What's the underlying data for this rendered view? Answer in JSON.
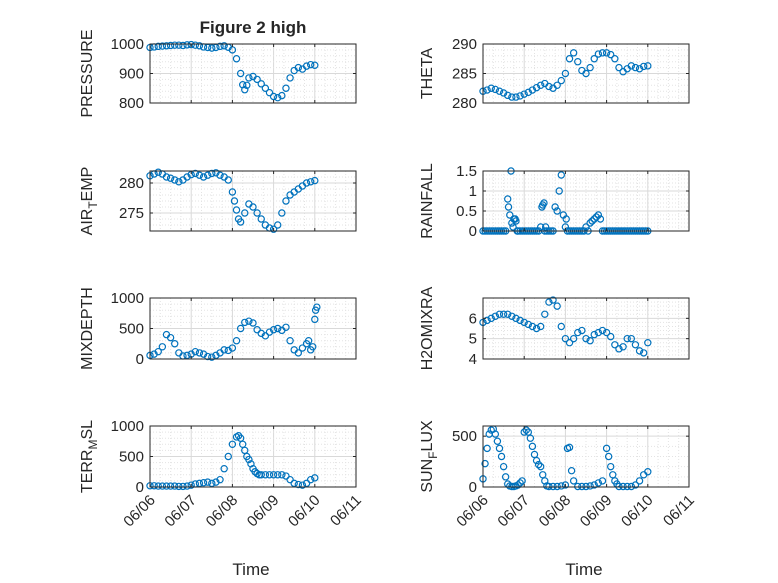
{
  "chart_data": [
    {
      "type": "scatter",
      "title": "Figure 2 high",
      "ylabel": "PRESSURE",
      "ylim": [
        800,
        1000
      ],
      "yticks": [
        "800",
        "900",
        "1000"
      ],
      "grid": true,
      "marker": "circle",
      "color": "#0072BD",
      "series": [
        {
          "x": [
            6.0,
            6.1,
            6.2,
            6.3,
            6.4,
            6.5,
            6.6,
            6.7,
            6.8,
            6.9,
            7.0,
            7.1,
            7.2,
            7.3,
            7.4,
            7.5,
            7.6,
            7.7,
            7.8,
            7.9,
            8.0,
            8.1,
            8.2,
            8.25,
            8.3,
            8.35,
            8.4,
            8.5,
            8.6,
            8.7,
            8.8,
            8.9,
            9.0,
            9.1,
            9.2,
            9.3,
            9.4,
            9.5,
            9.6,
            9.7,
            9.8,
            9.9,
            10.0
          ],
          "y": [
            988,
            990,
            992,
            993,
            994,
            995,
            996,
            996,
            995,
            997,
            998,
            996,
            994,
            990,
            988,
            986,
            988,
            992,
            994,
            989,
            980,
            950,
            900,
            862,
            845,
            860,
            885,
            890,
            880,
            865,
            850,
            835,
            822,
            818,
            825,
            850,
            885,
            910,
            920,
            915,
            925,
            930,
            928
          ]
        }
      ]
    },
    {
      "type": "scatter",
      "ylabel": "THETA",
      "ylim": [
        280,
        290
      ],
      "yticks": [
        "280",
        "285",
        "290"
      ],
      "grid": true,
      "marker": "circle",
      "color": "#0072BD",
      "series": [
        {
          "x": [
            6.0,
            6.1,
            6.2,
            6.3,
            6.4,
            6.5,
            6.6,
            6.7,
            6.8,
            6.9,
            7.0,
            7.1,
            7.2,
            7.3,
            7.4,
            7.5,
            7.6,
            7.7,
            7.8,
            7.9,
            8.0,
            8.1,
            8.2,
            8.3,
            8.4,
            8.5,
            8.6,
            8.7,
            8.8,
            8.9,
            9.0,
            9.1,
            9.2,
            9.3,
            9.4,
            9.5,
            9.6,
            9.7,
            9.8,
            9.9,
            10.0
          ],
          "y": [
            282.0,
            282.2,
            282.5,
            282.3,
            282.0,
            281.7,
            281.3,
            281.0,
            281.0,
            281.2,
            281.5,
            281.8,
            282.2,
            282.6,
            283.0,
            283.3,
            282.8,
            282.5,
            283.0,
            283.8,
            285.0,
            287.5,
            288.5,
            287.0,
            285.5,
            285.0,
            286.0,
            287.5,
            288.3,
            288.5,
            288.5,
            288.2,
            287.5,
            286.0,
            285.3,
            285.8,
            286.3,
            286.0,
            285.8,
            286.2,
            286.3
          ]
        }
      ]
    },
    {
      "type": "scatter",
      "ylabel": "AIR_TEMP",
      "ylabel_parts": [
        "AIR",
        "T",
        "EMP"
      ],
      "ylim": [
        272,
        282
      ],
      "yticks": [
        "275",
        "280"
      ],
      "grid": true,
      "marker": "circle",
      "color": "#0072BD",
      "series": [
        {
          "x": [
            6.0,
            6.1,
            6.2,
            6.3,
            6.4,
            6.5,
            6.6,
            6.7,
            6.8,
            6.9,
            7.0,
            7.1,
            7.2,
            7.3,
            7.4,
            7.5,
            7.6,
            7.7,
            7.8,
            7.9,
            8.0,
            8.05,
            8.1,
            8.15,
            8.2,
            8.3,
            8.4,
            8.5,
            8.6,
            8.7,
            8.8,
            8.9,
            9.0,
            9.1,
            9.2,
            9.3,
            9.4,
            9.5,
            9.6,
            9.7,
            9.8,
            9.9,
            10.0
          ],
          "y": [
            281.2,
            281.5,
            281.8,
            281.5,
            281.0,
            280.8,
            280.5,
            280.2,
            280.5,
            281.0,
            281.4,
            281.6,
            281.3,
            281.0,
            281.3,
            281.6,
            281.7,
            281.3,
            281.0,
            280.5,
            278.5,
            277.0,
            275.5,
            274.0,
            273.5,
            275.0,
            276.5,
            276.0,
            275.0,
            274.0,
            273.0,
            272.5,
            272.3,
            273.0,
            275.0,
            277.0,
            278.0,
            278.5,
            279.0,
            279.5,
            280.0,
            280.2,
            280.4
          ]
        }
      ]
    },
    {
      "type": "scatter",
      "ylabel": "RAINFALL",
      "ylim": [
        0,
        1.5
      ],
      "yticks": [
        "0",
        "0.5",
        "1",
        "1.5"
      ],
      "grid": true,
      "marker": "circle",
      "color": "#0072BD",
      "series": [
        {
          "x": [
            6.0,
            6.05,
            6.1,
            6.15,
            6.2,
            6.25,
            6.3,
            6.35,
            6.4,
            6.45,
            6.5,
            6.55,
            6.6,
            6.62,
            6.65,
            6.68,
            6.7,
            6.73,
            6.75,
            6.78,
            6.8,
            6.83,
            6.85,
            6.9,
            6.95,
            7.0,
            7.05,
            7.1,
            7.15,
            7.2,
            7.25,
            7.3,
            7.35,
            7.4,
            7.43,
            7.45,
            7.48,
            7.5,
            7.52,
            7.55,
            7.6,
            7.65,
            7.7,
            7.75,
            7.8,
            7.85,
            7.9,
            7.95,
            8.0,
            8.02,
            8.05,
            8.1,
            8.15,
            8.2,
            8.25,
            8.3,
            8.35,
            8.4,
            8.45,
            8.5,
            8.55,
            8.6,
            8.65,
            8.7,
            8.75,
            8.8,
            8.85,
            8.9,
            8.95,
            9.0,
            9.05,
            9.1,
            9.15,
            9.2,
            9.25,
            9.3,
            9.35,
            9.4,
            9.45,
            9.5,
            9.55,
            9.6,
            9.65,
            9.7,
            9.75,
            9.8,
            9.85,
            9.9,
            9.95,
            10.0
          ],
          "y": [
            0,
            0,
            0,
            0,
            0,
            0,
            0,
            0,
            0,
            0,
            0,
            0,
            0.8,
            0.6,
            0.4,
            1.5,
            0.2,
            0.1,
            0.3,
            0.3,
            0.25,
            0,
            0,
            0,
            0,
            0,
            0,
            0,
            0,
            0,
            0,
            0,
            0,
            0.1,
            0.6,
            0.65,
            0.7,
            0,
            0.1,
            0,
            0,
            0,
            0,
            0.6,
            0.5,
            1.0,
            1.4,
            0.4,
            0.1,
            0.3,
            0,
            0,
            0,
            0,
            0,
            0,
            0,
            0,
            0,
            0.1,
            0,
            0.2,
            0.25,
            0.3,
            0.35,
            0.4,
            0.3,
            0,
            0,
            0,
            0,
            0,
            0,
            0,
            0,
            0,
            0,
            0,
            0,
            0,
            0,
            0,
            0,
            0,
            0,
            0,
            0,
            0,
            0,
            0
          ]
        }
      ]
    },
    {
      "type": "scatter",
      "ylabel": "MIXDEPTH",
      "ylim": [
        0,
        1000
      ],
      "yticks": [
        "0",
        "500",
        "1000"
      ],
      "grid": true,
      "marker": "circle",
      "color": "#0072BD",
      "series": [
        {
          "x": [
            6.0,
            6.1,
            6.2,
            6.3,
            6.4,
            6.5,
            6.6,
            6.7,
            6.8,
            6.9,
            7.0,
            7.1,
            7.2,
            7.3,
            7.4,
            7.5,
            7.6,
            7.7,
            7.8,
            7.9,
            8.0,
            8.1,
            8.2,
            8.3,
            8.4,
            8.5,
            8.6,
            8.7,
            8.8,
            8.9,
            9.0,
            9.1,
            9.2,
            9.3,
            9.4,
            9.5,
            9.6,
            9.7,
            9.8,
            9.85,
            9.9,
            9.95,
            10.0,
            10.02,
            10.05
          ],
          "y": [
            60,
            80,
            120,
            200,
            400,
            350,
            250,
            100,
            50,
            60,
            80,
            120,
            100,
            80,
            40,
            30,
            60,
            100,
            150,
            140,
            180,
            300,
            500,
            600,
            620,
            590,
            480,
            420,
            380,
            440,
            480,
            500,
            470,
            520,
            300,
            150,
            100,
            180,
            250,
            300,
            150,
            200,
            650,
            800,
            850
          ]
        }
      ]
    },
    {
      "type": "scatter",
      "ylabel": "H2OMIXRA",
      "ylim": [
        4,
        7
      ],
      "yticks": [
        "4",
        "5",
        "6"
      ],
      "grid": true,
      "marker": "circle",
      "color": "#0072BD",
      "series": [
        {
          "x": [
            6.0,
            6.1,
            6.2,
            6.3,
            6.4,
            6.5,
            6.6,
            6.7,
            6.8,
            6.9,
            7.0,
            7.1,
            7.2,
            7.3,
            7.4,
            7.5,
            7.6,
            7.7,
            7.8,
            7.9,
            8.0,
            8.1,
            8.2,
            8.3,
            8.4,
            8.5,
            8.6,
            8.7,
            8.8,
            8.9,
            9.0,
            9.1,
            9.2,
            9.3,
            9.4,
            9.5,
            9.6,
            9.7,
            9.8,
            9.9,
            10.0
          ],
          "y": [
            5.8,
            5.9,
            6.0,
            6.1,
            6.2,
            6.2,
            6.2,
            6.1,
            6.0,
            5.9,
            5.8,
            5.7,
            5.6,
            5.5,
            5.6,
            6.2,
            6.8,
            6.9,
            6.6,
            5.6,
            5.0,
            4.8,
            5.0,
            5.3,
            5.4,
            5.0,
            4.9,
            5.2,
            5.3,
            5.4,
            5.3,
            5.1,
            4.7,
            4.5,
            4.6,
            5.0,
            5.0,
            4.7,
            4.4,
            4.3,
            4.8
          ]
        }
      ]
    },
    {
      "type": "scatter",
      "ylabel": "TERR_MSL",
      "ylabel_parts": [
        "TERR",
        "M",
        "SL"
      ],
      "ylim": [
        0,
        1000
      ],
      "yticks": [
        "0",
        "500",
        "1000"
      ],
      "xticks": [
        "06/06",
        "06/07",
        "06/08",
        "06/09",
        "06/10",
        "06/11"
      ],
      "xlabel": "Time",
      "grid": true,
      "marker": "circle",
      "color": "#0072BD",
      "series": [
        {
          "x": [
            6.0,
            6.1,
            6.2,
            6.3,
            6.4,
            6.5,
            6.6,
            6.7,
            6.8,
            6.9,
            7.0,
            7.1,
            7.2,
            7.3,
            7.4,
            7.5,
            7.6,
            7.7,
            7.8,
            7.9,
            8.0,
            8.1,
            8.15,
            8.2,
            8.25,
            8.3,
            8.35,
            8.4,
            8.45,
            8.5,
            8.55,
            8.6,
            8.65,
            8.7,
            8.8,
            8.9,
            9.0,
            9.1,
            9.2,
            9.3,
            9.4,
            9.5,
            9.6,
            9.7,
            9.8,
            9.9,
            10.0
          ],
          "y": [
            20,
            20,
            15,
            15,
            15,
            15,
            15,
            10,
            10,
            15,
            30,
            50,
            60,
            70,
            80,
            60,
            80,
            120,
            300,
            500,
            700,
            820,
            840,
            800,
            700,
            600,
            500,
            450,
            380,
            300,
            250,
            220,
            200,
            200,
            200,
            200,
            200,
            200,
            200,
            180,
            120,
            60,
            40,
            30,
            60,
            120,
            150
          ]
        }
      ]
    },
    {
      "type": "scatter",
      "ylabel": "SUN_FLUX",
      "ylabel_parts": [
        "SUN",
        "F",
        "LUX"
      ],
      "ylim": [
        0,
        600
      ],
      "yticks": [
        "0",
        "500"
      ],
      "xticks": [
        "06/06",
        "06/07",
        "06/08",
        "06/09",
        "06/10",
        "06/11"
      ],
      "xlabel": "Time",
      "grid": true,
      "marker": "circle",
      "color": "#0072BD",
      "series": [
        {
          "x": [
            6.0,
            6.05,
            6.1,
            6.15,
            6.2,
            6.25,
            6.3,
            6.35,
            6.4,
            6.45,
            6.5,
            6.55,
            6.6,
            6.65,
            6.7,
            6.75,
            6.8,
            6.85,
            6.9,
            6.95,
            7.0,
            7.05,
            7.1,
            7.15,
            7.2,
            7.25,
            7.3,
            7.35,
            7.4,
            7.45,
            7.5,
            7.55,
            7.6,
            7.7,
            7.8,
            7.9,
            8.0,
            8.05,
            8.1,
            8.15,
            8.2,
            8.3,
            8.4,
            8.5,
            8.6,
            8.7,
            8.8,
            8.9,
            9.0,
            9.05,
            9.1,
            9.15,
            9.2,
            9.25,
            9.3,
            9.4,
            9.5,
            9.6,
            9.7,
            9.8,
            9.9,
            10.0
          ],
          "y": [
            80,
            230,
            380,
            520,
            560,
            570,
            520,
            450,
            380,
            300,
            200,
            100,
            30,
            10,
            5,
            5,
            10,
            20,
            40,
            60,
            540,
            560,
            540,
            480,
            400,
            320,
            260,
            220,
            200,
            120,
            60,
            10,
            5,
            5,
            5,
            10,
            20,
            380,
            390,
            160,
            60,
            5,
            5,
            5,
            10,
            20,
            40,
            60,
            380,
            300,
            200,
            120,
            60,
            30,
            5,
            5,
            5,
            5,
            20,
            60,
            120,
            150
          ]
        }
      ]
    }
  ]
}
